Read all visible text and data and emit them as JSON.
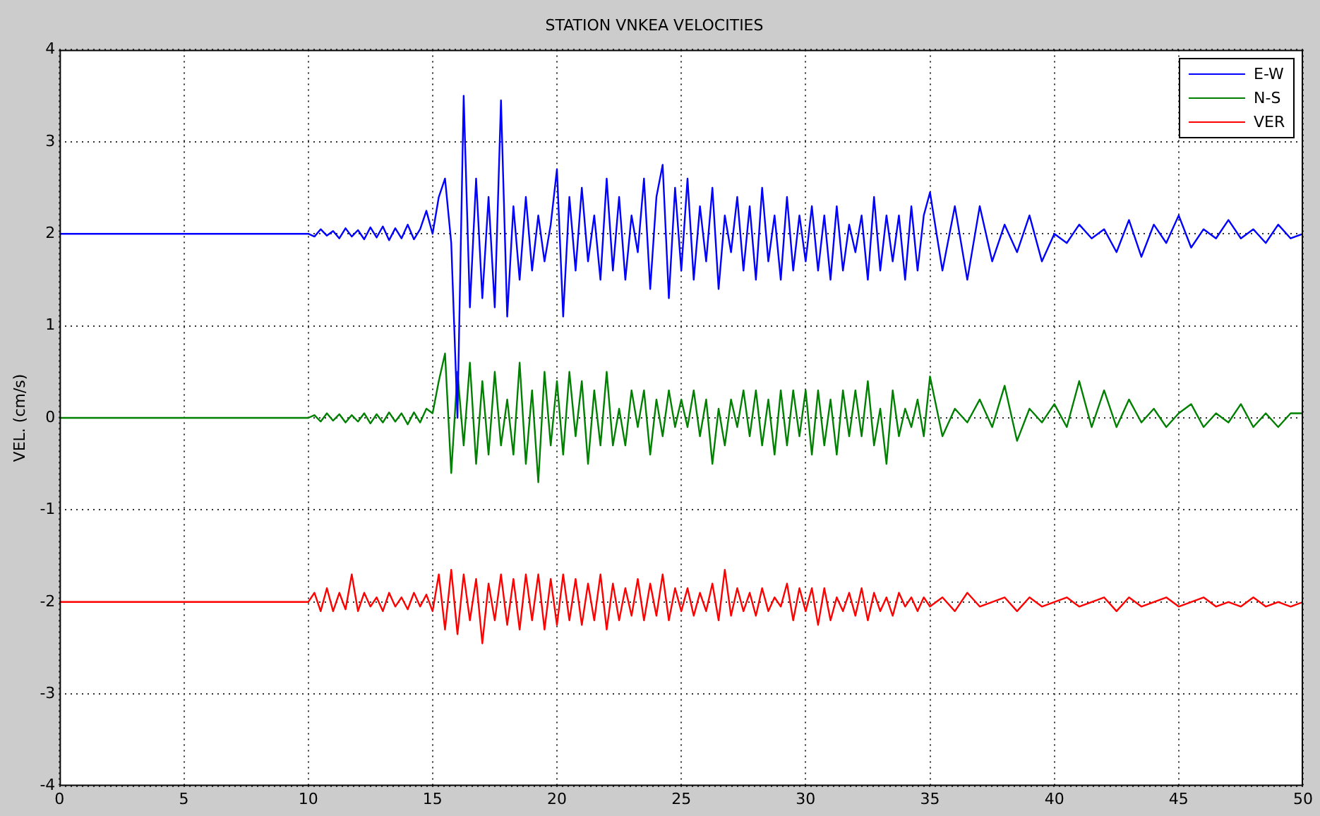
{
  "chart_data": {
    "type": "line",
    "title": "STATION VNKEA VELOCITIES",
    "ylabel": "VEL. (cm/s)",
    "x": [
      0,
      9.75,
      10,
      10.25,
      10.5,
      10.75,
      11,
      11.25,
      11.5,
      11.75,
      12,
      12.25,
      12.5,
      12.75,
      13,
      13.25,
      13.5,
      13.75,
      14,
      14.25,
      14.5,
      14.75,
      15,
      15.25,
      15.5,
      15.75,
      16,
      16.25,
      16.5,
      16.75,
      17,
      17.25,
      17.5,
      17.75,
      18,
      18.25,
      18.5,
      18.75,
      19,
      19.25,
      19.5,
      19.75,
      20,
      20.25,
      20.5,
      20.75,
      21,
      21.25,
      21.5,
      21.75,
      22,
      22.25,
      22.5,
      22.75,
      23,
      23.25,
      23.5,
      23.75,
      24,
      24.25,
      24.5,
      24.75,
      25,
      25.25,
      25.5,
      25.75,
      26,
      26.25,
      26.5,
      26.75,
      27,
      27.25,
      27.5,
      27.75,
      28,
      28.25,
      28.5,
      28.75,
      29,
      29.25,
      29.5,
      29.75,
      30,
      30.25,
      30.5,
      30.75,
      31,
      31.25,
      31.5,
      31.75,
      32,
      32.25,
      32.5,
      32.75,
      33,
      33.25,
      33.5,
      33.75,
      34,
      34.25,
      34.5,
      34.75,
      35,
      35.5,
      36,
      36.5,
      37,
      37.5,
      38,
      38.5,
      39,
      39.5,
      40,
      40.5,
      41,
      41.5,
      42,
      42.5,
      43,
      43.5,
      44,
      44.5,
      45,
      45.5,
      46,
      46.5,
      47,
      47.5,
      48,
      48.5,
      49,
      49.5,
      50
    ],
    "series": [
      {
        "name": "E-W",
        "color": "#0000ff",
        "values": [
          2,
          2,
          2,
          1.97,
          2.05,
          1.98,
          2.03,
          1.95,
          2.06,
          1.97,
          2.04,
          1.94,
          2.07,
          1.96,
          2.08,
          1.93,
          2.06,
          1.95,
          2.1,
          1.94,
          2.05,
          2.25,
          2.0,
          2.4,
          2.6,
          1.9,
          0.0,
          3.5,
          1.2,
          2.6,
          1.3,
          2.4,
          1.2,
          3.45,
          1.1,
          2.3,
          1.5,
          2.4,
          1.6,
          2.2,
          1.7,
          2.1,
          2.7,
          1.1,
          2.4,
          1.6,
          2.5,
          1.7,
          2.2,
          1.5,
          2.6,
          1.6,
          2.4,
          1.5,
          2.2,
          1.8,
          2.6,
          1.4,
          2.4,
          2.75,
          1.3,
          2.5,
          1.6,
          2.6,
          1.5,
          2.3,
          1.7,
          2.5,
          1.4,
          2.2,
          1.8,
          2.4,
          1.6,
          2.3,
          1.5,
          2.5,
          1.7,
          2.2,
          1.5,
          2.4,
          1.6,
          2.2,
          1.7,
          2.3,
          1.6,
          2.2,
          1.5,
          2.3,
          1.6,
          2.1,
          1.8,
          2.2,
          1.5,
          2.4,
          1.6,
          2.2,
          1.7,
          2.2,
          1.5,
          2.3,
          1.6,
          2.2,
          2.45,
          1.6,
          2.3,
          1.5,
          2.3,
          1.7,
          2.1,
          1.8,
          2.2,
          1.7,
          2.0,
          1.9,
          2.1,
          1.95,
          2.05,
          1.8,
          2.15,
          1.75,
          2.1,
          1.9,
          2.2,
          1.85,
          2.05,
          1.95,
          2.15,
          1.95,
          2.05,
          1.9,
          2.1,
          1.95,
          2.0
        ]
      },
      {
        "name": "N-S",
        "color": "#008000",
        "values": [
          0,
          0,
          0,
          0.03,
          -0.04,
          0.05,
          -0.03,
          0.04,
          -0.05,
          0.03,
          -0.04,
          0.05,
          -0.06,
          0.04,
          -0.05,
          0.06,
          -0.04,
          0.05,
          -0.07,
          0.06,
          -0.05,
          0.1,
          0.05,
          0.4,
          0.7,
          -0.6,
          0.5,
          -0.3,
          0.6,
          -0.5,
          0.4,
          -0.4,
          0.5,
          -0.3,
          0.2,
          -0.4,
          0.6,
          -0.5,
          0.3,
          -0.7,
          0.5,
          -0.3,
          0.4,
          -0.4,
          0.5,
          -0.2,
          0.4,
          -0.5,
          0.3,
          -0.3,
          0.5,
          -0.3,
          0.1,
          -0.3,
          0.3,
          -0.1,
          0.3,
          -0.4,
          0.2,
          -0.2,
          0.3,
          -0.1,
          0.2,
          -0.1,
          0.3,
          -0.2,
          0.2,
          -0.5,
          0.1,
          -0.3,
          0.2,
          -0.1,
          0.3,
          -0.2,
          0.3,
          -0.3,
          0.2,
          -0.4,
          0.3,
          -0.3,
          0.3,
          -0.2,
          0.3,
          -0.4,
          0.3,
          -0.3,
          0.2,
          -0.4,
          0.3,
          -0.2,
          0.3,
          -0.2,
          0.4,
          -0.3,
          0.1,
          -0.5,
          0.3,
          -0.2,
          0.1,
          -0.1,
          0.2,
          -0.2,
          0.45,
          -0.2,
          0.1,
          -0.05,
          0.2,
          -0.1,
          0.35,
          -0.25,
          0.1,
          -0.05,
          0.15,
          -0.1,
          0.4,
          -0.1,
          0.3,
          -0.1,
          0.2,
          -0.05,
          0.1,
          -0.1,
          0.05,
          0.15,
          -0.1,
          0.05,
          -0.05,
          0.15,
          -0.1,
          0.05,
          -0.1,
          0.05,
          0.05
        ]
      },
      {
        "name": "VER",
        "color": "#ff0000",
        "values": [
          -2,
          -2,
          -2,
          -1.9,
          -2.1,
          -1.85,
          -2.1,
          -1.9,
          -2.08,
          -1.7,
          -2.1,
          -1.9,
          -2.05,
          -1.95,
          -2.1,
          -1.9,
          -2.05,
          -1.95,
          -2.08,
          -1.9,
          -2.05,
          -1.92,
          -2.1,
          -1.7,
          -2.3,
          -1.65,
          -2.35,
          -1.7,
          -2.2,
          -1.75,
          -2.45,
          -1.8,
          -2.2,
          -1.7,
          -2.25,
          -1.75,
          -2.3,
          -1.7,
          -2.2,
          -1.7,
          -2.3,
          -1.75,
          -2.25,
          -1.7,
          -2.2,
          -1.75,
          -2.25,
          -1.8,
          -2.2,
          -1.7,
          -2.3,
          -1.8,
          -2.2,
          -1.85,
          -2.15,
          -1.75,
          -2.2,
          -1.8,
          -2.15,
          -1.7,
          -2.2,
          -1.85,
          -2.1,
          -1.85,
          -2.15,
          -1.9,
          -2.1,
          -1.8,
          -2.2,
          -1.65,
          -2.15,
          -1.85,
          -2.1,
          -1.9,
          -2.15,
          -1.85,
          -2.1,
          -1.95,
          -2.05,
          -1.8,
          -2.2,
          -1.85,
          -2.1,
          -1.85,
          -2.25,
          -1.85,
          -2.2,
          -1.95,
          -2.1,
          -1.9,
          -2.15,
          -1.85,
          -2.2,
          -1.9,
          -2.1,
          -1.95,
          -2.15,
          -1.9,
          -2.05,
          -1.95,
          -2.1,
          -1.95,
          -2.05,
          -1.95,
          -2.1,
          -1.9,
          -2.05,
          -2.0,
          -1.95,
          -2.1,
          -1.95,
          -2.05,
          -2.0,
          -1.95,
          -2.05,
          -2.0,
          -1.95,
          -2.1,
          -1.95,
          -2.05,
          -2.0,
          -1.95,
          -2.05,
          -2.0,
          -1.95,
          -2.05,
          -2.0,
          -2.05,
          -1.95,
          -2.05,
          -2.0,
          -2.05,
          -2.0
        ]
      }
    ],
    "xlim": [
      0,
      50
    ],
    "xticks": [
      0,
      5,
      10,
      15,
      20,
      25,
      30,
      35,
      40,
      45,
      50
    ],
    "ylim": [
      -4,
      4
    ],
    "yticks": [
      -4,
      -3,
      -2,
      -1,
      0,
      1,
      2,
      3,
      4
    ],
    "grid": true,
    "legend": "top right",
    "marker": "none",
    "line_style": "solid"
  }
}
